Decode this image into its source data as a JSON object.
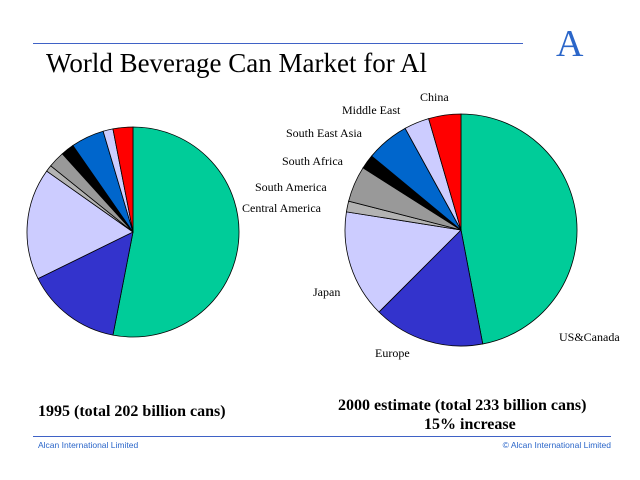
{
  "header": {
    "title": "World Beverage Can Market for Al",
    "logo_letter": "A"
  },
  "chart_data": [
    {
      "type": "pie",
      "title": "World Beverage Can Market for Al",
      "caption": "1995 (total 202 billion cans)",
      "start_angle_deg": 0,
      "direction": "clockwise",
      "categories": [
        "US&Canada",
        "Europe",
        "Japan",
        "Central America",
        "South America",
        "South Africa",
        "South East Asia",
        "Middle East",
        "China"
      ],
      "values": [
        52.5,
        14.5,
        17.0,
        1.0,
        2.5,
        2.0,
        5.0,
        1.5,
        3.0
      ],
      "unit": "% of cans (estimated)"
    },
    {
      "type": "pie",
      "title": "World Beverage Can Market for Al",
      "caption": "2000 estimate (total 233 billion cans)",
      "caption2": "15% increase",
      "start_angle_deg": 0,
      "direction": "clockwise",
      "categories": [
        "US&Canada",
        "Europe",
        "Japan",
        "Central America",
        "South America",
        "South Africa",
        "South East Asia",
        "Middle East",
        "China"
      ],
      "values": [
        47.0,
        15.5,
        15.0,
        1.5,
        5.0,
        2.0,
        6.0,
        3.5,
        4.5
      ],
      "unit": "% of cans (estimated)"
    }
  ],
  "colors": {
    "US&Canada": "#00cc99",
    "Europe": "#3333cc",
    "Japan": "#ccccff",
    "Central America": "#b3b3b3",
    "South America": "#999999",
    "South Africa": "#000000",
    "South East Asia": "#0066cc",
    "Middle East": "#ccccff",
    "China": "#ff0000",
    "rule": "#3f62c6",
    "footer": "#2b66c9"
  },
  "footer": {
    "left": "Alcan International Limited",
    "right": "© Alcan International Limited"
  }
}
